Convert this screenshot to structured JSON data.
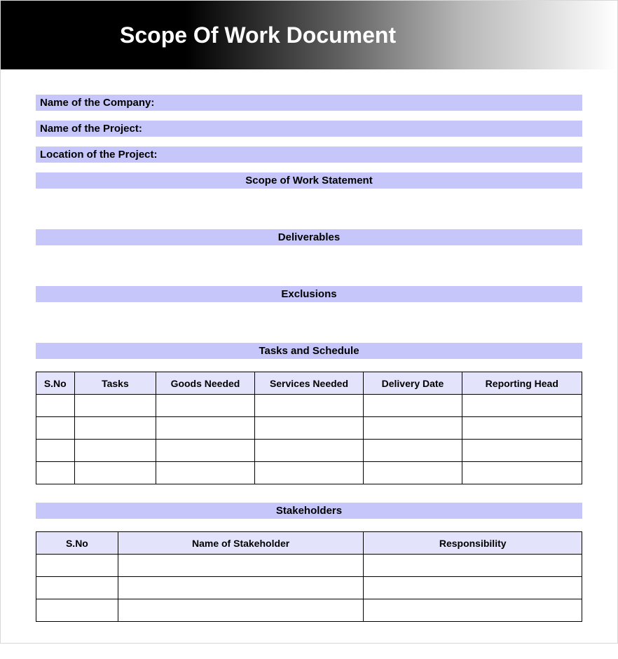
{
  "header": {
    "title": "Scope Of Work Document",
    "title_color": "#ffffff",
    "title_fontsize": 32,
    "gradient_start": "#000000",
    "gradient_end": "#ffffff"
  },
  "fields": {
    "company_label": "Name of the Company:",
    "project_label": "Name of the Project:",
    "location_label": "Location of the Project:"
  },
  "sections": {
    "scope_statement": "Scope of Work Statement",
    "deliverables": "Deliverables",
    "exclusions": "Exclusions",
    "tasks_schedule": "Tasks and Schedule",
    "stakeholders": "Stakeholders"
  },
  "colors": {
    "field_bar_bg": "#c6c6fa",
    "table_header_bg": "#e3e3fb",
    "text": "#000000",
    "border": "#000000",
    "page_border": "#d8d8d8"
  },
  "tasks_table": {
    "columns": [
      "S.No",
      "Tasks",
      "Goods Needed",
      "Services Needed",
      "Delivery Date",
      "Reporting Head"
    ],
    "column_widths_pct": [
      7,
      15,
      18,
      20,
      18,
      22
    ],
    "rows": [
      [
        "",
        "",
        "",
        "",
        "",
        ""
      ],
      [
        "",
        "",
        "",
        "",
        "",
        ""
      ],
      [
        "",
        "",
        "",
        "",
        "",
        ""
      ],
      [
        "",
        "",
        "",
        "",
        "",
        ""
      ]
    ]
  },
  "stakeholders_table": {
    "columns": [
      "S.No",
      "Name of Stakeholder",
      "Responsibility"
    ],
    "column_widths_pct": [
      15,
      45,
      40
    ],
    "rows": [
      [
        "",
        "",
        ""
      ],
      [
        "",
        "",
        ""
      ],
      [
        "",
        "",
        ""
      ]
    ]
  }
}
